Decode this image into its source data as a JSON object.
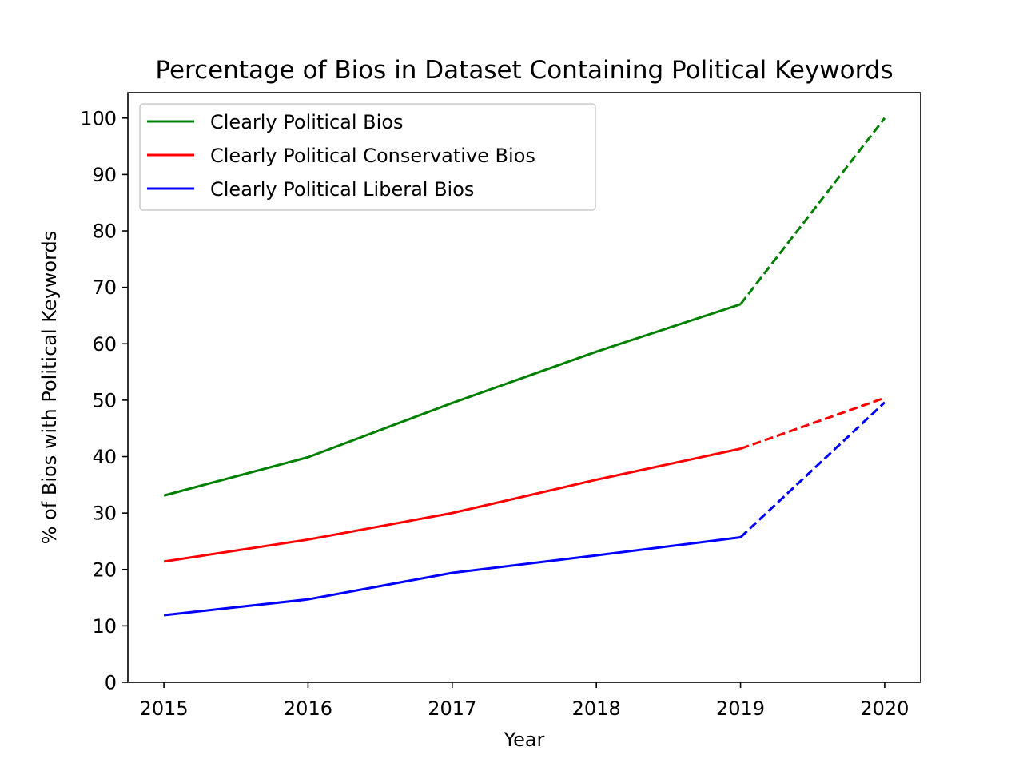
{
  "chart_data": {
    "type": "line",
    "title": "Percentage of Bios in Dataset Containing Political Keywords",
    "xlabel": "Year",
    "ylabel": "% of Bios with Political Keywords",
    "x": [
      2015,
      2016,
      2017,
      2018,
      2019,
      2020
    ],
    "xlim": [
      2014.75,
      2020.25
    ],
    "ylim": [
      0,
      104.5
    ],
    "yticks": [
      0,
      10,
      20,
      30,
      40,
      50,
      60,
      70,
      80,
      90,
      100
    ],
    "grid": false,
    "legend_position": "top-left",
    "series": [
      {
        "name": "Clearly Political Bios",
        "color": "#008000",
        "values": [
          33.1,
          39.9,
          49.5,
          58.6,
          67.0,
          100.0
        ],
        "dashed_from_index": 4
      },
      {
        "name": "Clearly Political Conservative Bios",
        "color": "#ff0000",
        "values": [
          21.4,
          25.3,
          30.0,
          35.9,
          41.4,
          50.4
        ],
        "dashed_from_index": 4
      },
      {
        "name": "Clearly Political Liberal Bios",
        "color": "#0000ff",
        "values": [
          11.9,
          14.7,
          19.4,
          22.5,
          25.7,
          49.6
        ],
        "dashed_from_index": 4
      }
    ]
  }
}
